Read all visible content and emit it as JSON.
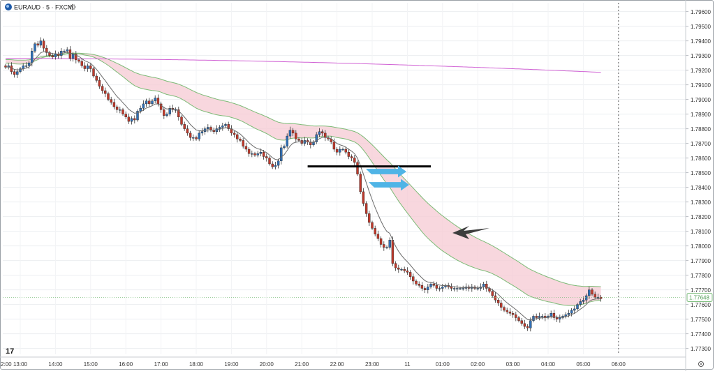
{
  "symbol": {
    "title": "EURAUD · 5 · FXCM",
    "logo_icon": "fxcm-globe-icon",
    "settings_icon": "settings-gear-icon",
    "brand": "17"
  },
  "colors": {
    "bull": "#2f6fb5",
    "bear": "#c0392b",
    "cloud_fill": "#f6c9d3",
    "cloud_edge": "#7dbb77",
    "ema_line": "#6a6a6a",
    "long_ma": "#d061d4",
    "level_line": "#000000",
    "arrow_blue": "#4fb4e6",
    "arrow_dark": "#3d3d3d",
    "price_label_bg": "#ffffff",
    "price_label_text": "#4f9a54"
  },
  "price_axis": {
    "current_price": "1.77648"
  },
  "chart_data": {
    "type": "candlestick",
    "title": "EURAUD · 5 · FXCM",
    "y_ticks": [
      "1.79600",
      "1.79500",
      "1.79400",
      "1.79300",
      "1.79200",
      "1.79100",
      "1.79000",
      "1.78900",
      "1.78800",
      "1.78700",
      "1.78600",
      "1.78500",
      "1.78400",
      "1.78300",
      "1.78200",
      "1.78100",
      "1.78000",
      "1.77900",
      "1.77800",
      "1.77700",
      "1.77600",
      "1.77500",
      "1.77400",
      "1.77300"
    ],
    "ylim": [
      1.7726,
      1.7966
    ],
    "x_ticks": [
      "2:00",
      "13:00",
      "14:00",
      "15:00",
      "16:00",
      "17:00",
      "18:00",
      "19:00",
      "20:00",
      "21:00",
      "22:00",
      "23:00",
      "11",
      "01:00",
      "02:00",
      "03:00",
      "04:00",
      "05:00",
      "06:00"
    ],
    "x_tick_index": [
      -7,
      5,
      17,
      29,
      41,
      53,
      65,
      77,
      89,
      101,
      113,
      125,
      137,
      149,
      161,
      173,
      185,
      197,
      209
    ],
    "grid": true,
    "dotted_vline_index": 209,
    "close_series": [
      1.7922,
      1.7923,
      1.7919,
      1.7917,
      1.7919,
      1.7921,
      1.7923,
      1.7923,
      1.7925,
      1.7933,
      1.7938,
      1.7937,
      1.794,
      1.7935,
      1.7932,
      1.793,
      1.7929,
      1.7931,
      1.793,
      1.7933,
      1.7933,
      1.7934,
      1.7928,
      1.7931,
      1.7927,
      1.7926,
      1.7923,
      1.7921,
      1.7923,
      1.7921,
      1.7916,
      1.7913,
      1.7909,
      1.7906,
      1.7904,
      1.79,
      1.7898,
      1.7895,
      1.7893,
      1.7893,
      1.789,
      1.7888,
      1.7885,
      1.7887,
      1.7886,
      1.7892,
      1.7894,
      1.7897,
      1.7899,
      1.7897,
      1.7899,
      1.7901,
      1.7897,
      1.7893,
      1.7889,
      1.789,
      1.7894,
      1.7893,
      1.7893,
      1.7888,
      1.7883,
      1.788,
      1.7877,
      1.7874,
      1.7874,
      1.7873,
      1.7877,
      1.7878,
      1.788,
      1.7881,
      1.7879,
      1.7878,
      1.788,
      1.7881,
      1.7882,
      1.7883,
      1.788,
      1.7877,
      1.7876,
      1.7873,
      1.7872,
      1.7868,
      1.7866,
      1.7863,
      1.7863,
      1.7862,
      1.7863,
      1.7864,
      1.7861,
      1.786,
      1.7856,
      1.7854,
      1.7855,
      1.7858,
      1.7867,
      1.7868,
      1.7875,
      1.7879,
      1.7877,
      1.7873,
      1.7872,
      1.787,
      1.7872,
      1.7871,
      1.7869,
      1.7871,
      1.7876,
      1.7878,
      1.7877,
      1.7874,
      1.7873,
      1.7871,
      1.7866,
      1.7864,
      1.7866,
      1.7866,
      1.7864,
      1.7861,
      1.786,
      1.7857,
      1.7849,
      1.7837,
      1.7829,
      1.7822,
      1.7816,
      1.7812,
      1.7808,
      1.7805,
      1.7801,
      1.7799,
      1.7799,
      1.7804,
      1.7788,
      1.7785,
      1.7784,
      1.7784,
      1.7783,
      1.7782,
      1.7779,
      1.7776,
      1.7774,
      1.7773,
      1.7771,
      1.777,
      1.7772,
      1.7774,
      1.7773,
      1.7771,
      1.7771,
      1.7772,
      1.7773,
      1.7772,
      1.7771,
      1.7771,
      1.7771,
      1.7771,
      1.7771,
      1.7772,
      1.7771,
      1.7772,
      1.7771,
      1.7771,
      1.7772,
      1.7774,
      1.7771,
      1.7769,
      1.7766,
      1.7763,
      1.7761,
      1.7758,
      1.7756,
      1.7755,
      1.7754,
      1.7753,
      1.7751,
      1.7749,
      1.7747,
      1.7745,
      1.7744,
      1.7749,
      1.7752,
      1.7751,
      1.7752,
      1.7752,
      1.7751,
      1.7752,
      1.7754,
      1.7751,
      1.775,
      1.7751,
      1.7752,
      1.7753,
      1.7754,
      1.7756,
      1.7757,
      1.776,
      1.7762,
      1.7763,
      1.7766,
      1.777,
      1.7767,
      1.7765,
      1.7765,
      1.7764
    ]
  },
  "annotations": {
    "horizontal_level_price": 1.78543,
    "level_start_index": 103,
    "level_end_index": 145
  }
}
